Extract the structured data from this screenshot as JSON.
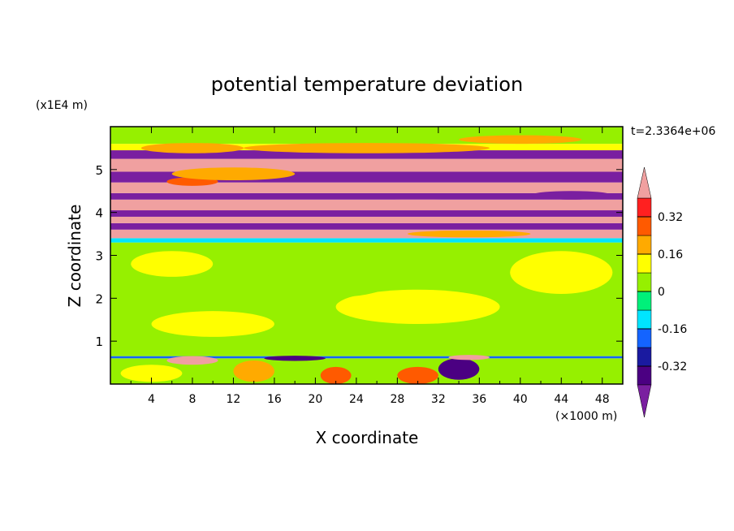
{
  "chart_data": {
    "type": "heatmap",
    "title": "potential temperature deviation",
    "xlabel": "X coordinate",
    "ylabel": "Z coordinate",
    "x_unit": "(×1000 m)",
    "y_unit": "(x1E4 m)",
    "time_label": "t=2.3364e+06",
    "xlim": [
      0,
      50
    ],
    "ylim": [
      0,
      6
    ],
    "x_ticks": [
      4,
      8,
      12,
      16,
      20,
      24,
      28,
      32,
      36,
      40,
      44,
      48
    ],
    "y_ticks": [
      1,
      2,
      3,
      4,
      5
    ],
    "colorbar": {
      "tick_labels": [
        "-0.32",
        "-0.16",
        "0",
        "0.16",
        "0.32"
      ],
      "levels": [
        -0.4,
        -0.32,
        -0.24,
        -0.16,
        -0.08,
        0,
        0.08,
        0.16,
        0.24,
        0.32,
        0.4
      ],
      "colors": [
        "#7a1fa0",
        "#4b0082",
        "#1a1aa0",
        "#1464ff",
        "#00e5ff",
        "#00f07a",
        "#96f000",
        "#ffff00",
        "#ffaa00",
        "#ff5a00",
        "#ff2020",
        "#f0a0a0"
      ],
      "extend": "both"
    },
    "field_bands": [
      {
        "z_range": [
          0,
          0.6
        ],
        "dominant_level": 0,
        "description_level": "mixed 0 and 0.08 with warm patches up to 0.24"
      },
      {
        "z_range": [
          0.6,
          0.65
        ],
        "dominant_level": -0.24
      },
      {
        "z_range": [
          0.65,
          3.3
        ],
        "dominant_level": 0.04
      },
      {
        "z_range": [
          3.3,
          3.4
        ],
        "dominant_level": -0.12
      },
      {
        "z_range": [
          3.4,
          3.6
        ],
        "dominant_level": 0.45
      },
      {
        "z_range": [
          3.6,
          3.75
        ],
        "dominant_level": -0.45
      },
      {
        "z_range": [
          3.75,
          3.9
        ],
        "dominant_level": 0.45
      },
      {
        "z_range": [
          3.9,
          4.05
        ],
        "dominant_level": -0.45
      },
      {
        "z_range": [
          4.05,
          4.3
        ],
        "dominant_level": 0.45
      },
      {
        "z_range": [
          4.3,
          4.45
        ],
        "dominant_level": -0.45
      },
      {
        "z_range": [
          4.45,
          4.7
        ],
        "dominant_level": 0.45
      },
      {
        "z_range": [
          4.7,
          4.95
        ],
        "dominant_level": -0.45
      },
      {
        "z_range": [
          4.95,
          5.25
        ],
        "dominant_level": 0.45
      },
      {
        "z_range": [
          5.25,
          5.45
        ],
        "dominant_level": -0.45
      },
      {
        "z_range": [
          5.45,
          5.6
        ],
        "dominant_level": 0.1
      },
      {
        "z_range": [
          5.6,
          6.0
        ],
        "dominant_level": 0.04
      }
    ]
  }
}
